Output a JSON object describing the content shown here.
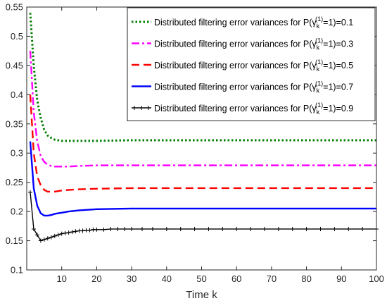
{
  "chart_data": {
    "type": "line",
    "title": "",
    "xlabel": "Time k",
    "ylabel": "",
    "xlim": [
      0,
      100
    ],
    "ylim": [
      0.1,
      0.55
    ],
    "xticks": [
      10,
      20,
      30,
      40,
      50,
      60,
      70,
      80,
      90,
      100
    ],
    "yticks": [
      0.1,
      0.15,
      0.2,
      0.25,
      0.3,
      0.35,
      0.4,
      0.45,
      0.5,
      0.55
    ],
    "legend_position": "top-right",
    "grid": false,
    "series": [
      {
        "name": "Distributed filtering error variances for P(γ_k^(1)=1)=0.1",
        "legend_prefix": "Distributed filtering error variances for P(γ",
        "legend_sub": "k",
        "legend_sup": "(1)",
        "legend_suffix": "=1)=0.1",
        "color": "#007f00",
        "style": "dotted",
        "x": [
          1,
          2,
          3,
          4,
          5,
          6,
          7,
          8,
          9,
          10,
          12,
          15,
          20,
          30,
          40,
          50,
          60,
          70,
          80,
          90,
          100
        ],
        "y": [
          0.54,
          0.45,
          0.39,
          0.36,
          0.34,
          0.33,
          0.326,
          0.323,
          0.322,
          0.321,
          0.321,
          0.321,
          0.321,
          0.322,
          0.322,
          0.322,
          0.322,
          0.322,
          0.322,
          0.322,
          0.322
        ]
      },
      {
        "name": "Distributed filtering error variances for P(γ_k^(1)=1)=0.3",
        "legend_prefix": "Distributed filtering error variances for P(γ",
        "legend_sub": "k",
        "legend_sup": "(1)",
        "legend_suffix": "=1)=0.3",
        "color": "#ff00ff",
        "style": "dashdot",
        "x": [
          1,
          2,
          3,
          4,
          5,
          6,
          7,
          8,
          9,
          10,
          12,
          15,
          20,
          30,
          40,
          50,
          60,
          70,
          80,
          90,
          100
        ],
        "y": [
          0.475,
          0.37,
          0.32,
          0.295,
          0.285,
          0.28,
          0.278,
          0.277,
          0.277,
          0.277,
          0.277,
          0.278,
          0.279,
          0.279,
          0.279,
          0.279,
          0.279,
          0.279,
          0.279,
          0.279,
          0.279
        ]
      },
      {
        "name": "Distributed filtering error variances for P(γ_k^(1)=1)=0.5",
        "legend_prefix": "Distributed filtering error variances for P(γ",
        "legend_sub": "k",
        "legend_sup": "(1)",
        "legend_suffix": "=1)=0.5",
        "color": "#ff0000",
        "style": "dashed",
        "x": [
          1,
          2,
          3,
          4,
          5,
          6,
          7,
          8,
          9,
          10,
          12,
          15,
          20,
          30,
          40,
          50,
          60,
          70,
          80,
          90,
          100
        ],
        "y": [
          0.4,
          0.3,
          0.26,
          0.245,
          0.237,
          0.234,
          0.234,
          0.234,
          0.235,
          0.236,
          0.237,
          0.238,
          0.239,
          0.24,
          0.24,
          0.24,
          0.24,
          0.24,
          0.24,
          0.24,
          0.24
        ]
      },
      {
        "name": "Distributed filtering error variances for P(γ_k^(1)=1)=0.7",
        "legend_prefix": "Distributed filtering error variances for P(γ",
        "legend_sub": "k",
        "legend_sup": "(1)",
        "legend_suffix": "=1)=0.7",
        "color": "#0000ff",
        "style": "solid",
        "x": [
          1,
          2,
          3,
          4,
          5,
          6,
          7,
          8,
          9,
          10,
          12,
          15,
          20,
          30,
          40,
          50,
          60,
          70,
          80,
          90,
          100
        ],
        "y": [
          0.32,
          0.24,
          0.21,
          0.197,
          0.193,
          0.193,
          0.194,
          0.196,
          0.197,
          0.198,
          0.2,
          0.202,
          0.204,
          0.205,
          0.205,
          0.205,
          0.205,
          0.205,
          0.205,
          0.205,
          0.205
        ]
      },
      {
        "name": "Distributed filtering error variances for P(γ_k^(1)=1)=0.9",
        "legend_prefix": "Distributed filtering error variances for P(γ",
        "legend_sub": "k",
        "legend_sup": "(1)",
        "legend_suffix": "=1)=0.9",
        "color": "#000000",
        "style": "solid-plus",
        "x": [
          1,
          2,
          3,
          4,
          5,
          6,
          7,
          8,
          9,
          10,
          11,
          12,
          13,
          14,
          15,
          16,
          17,
          18,
          19,
          20,
          22,
          24,
          26,
          28,
          30,
          33,
          36,
          40,
          44,
          48,
          52,
          56,
          60,
          64,
          68,
          72,
          76,
          80,
          84,
          88,
          92,
          96,
          100
        ],
        "y": [
          0.233,
          0.17,
          0.16,
          0.15,
          0.152,
          0.154,
          0.156,
          0.158,
          0.16,
          0.162,
          0.163,
          0.164,
          0.165,
          0.166,
          0.167,
          0.167,
          0.168,
          0.168,
          0.169,
          0.169,
          0.169,
          0.17,
          0.17,
          0.17,
          0.17,
          0.17,
          0.17,
          0.17,
          0.17,
          0.17,
          0.17,
          0.17,
          0.17,
          0.17,
          0.17,
          0.17,
          0.17,
          0.17,
          0.17,
          0.17,
          0.17,
          0.17,
          0.17
        ]
      }
    ]
  }
}
